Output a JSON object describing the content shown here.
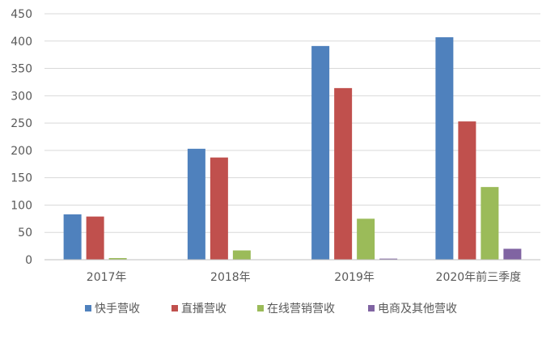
{
  "chart_data": {
    "type": "bar",
    "title": "",
    "xlabel": "",
    "ylabel": "",
    "categories": [
      "2017年",
      "2018年",
      "2019年",
      "2020年前三季度"
    ],
    "series": [
      {
        "name": "快手营收",
        "color": "#4f81bd",
        "values": [
          83,
          203,
          391,
          407
        ]
      },
      {
        "name": "直播营收",
        "color": "#c0504d",
        "values": [
          79,
          187,
          314,
          253
        ]
      },
      {
        "name": "在线营销营收",
        "color": "#9bbb59",
        "values": [
          3,
          17,
          75,
          133
        ]
      },
      {
        "name": "电商及其他营收",
        "color": "#8064a2",
        "values": [
          0,
          0,
          2,
          20
        ]
      }
    ],
    "ylim": [
      0,
      450
    ],
    "yticks": [
      0,
      50,
      100,
      150,
      200,
      250,
      300,
      350,
      400,
      450
    ],
    "grid": true,
    "legend": "bottom"
  }
}
